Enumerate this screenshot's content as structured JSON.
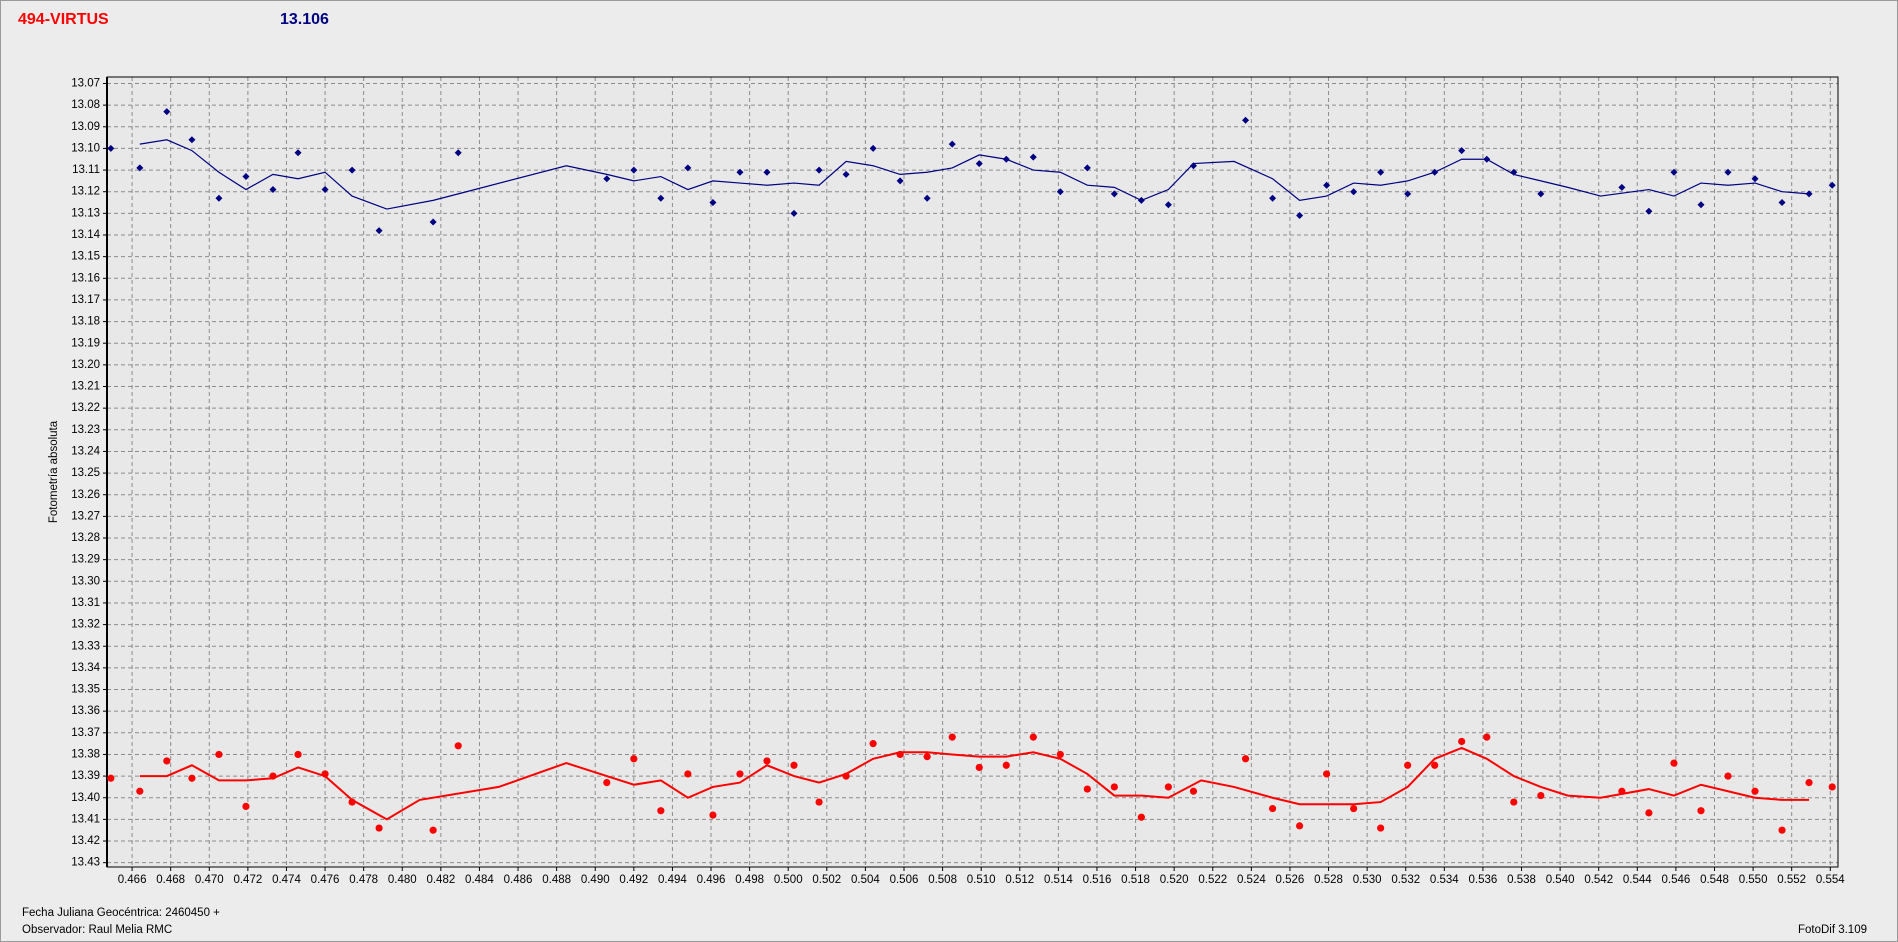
{
  "chart_data": {
    "type": "scatter",
    "title": "494-VIRTUS",
    "subtitle": "13.106",
    "y_label": "Fotometría absoluta",
    "footer_date": "Fecha Juliana Geocéntrica: 2460450 +",
    "footer_observer": "Observador: Raul Melia RMC",
    "software": "FotoDif 3.109",
    "grid": true,
    "invert_y": true,
    "xlim": [
      0.4647,
      0.5544
    ],
    "ylim": [
      13.067,
      13.432
    ],
    "xticks": [
      0.466,
      0.468,
      {
        "value": 0.47,
        "label": "0.470"
      },
      0.472,
      0.474,
      0.476,
      0.478,
      {
        "value": 0.48,
        "label": "0.480"
      },
      0.482,
      0.484,
      0.486,
      0.488,
      {
        "value": 0.49,
        "label": "0.490"
      },
      0.492,
      0.494,
      0.496,
      0.498,
      {
        "value": 0.5,
        "label": "0.500"
      },
      0.502,
      0.504,
      0.506,
      0.508,
      {
        "value": 0.51,
        "label": "0.510"
      },
      0.512,
      0.514,
      0.516,
      0.518,
      {
        "value": 0.52,
        "label": "0.520"
      },
      0.522,
      0.524,
      0.526,
      0.528,
      {
        "value": 0.53,
        "label": "0.530"
      },
      0.532,
      0.534,
      0.536,
      0.538,
      {
        "value": 0.54,
        "label": "0.540"
      },
      0.542,
      0.544,
      0.546,
      0.548,
      {
        "value": 0.55,
        "label": "0.550"
      },
      0.552,
      0.554
    ],
    "yticks": [
      13.07,
      13.08,
      13.09,
      {
        "value": 13.1,
        "label": "13.10"
      },
      13.11,
      13.12,
      13.13,
      13.14,
      13.15,
      13.16,
      13.17,
      13.18,
      13.19,
      {
        "value": 13.2,
        "label": "13.20"
      },
      13.21,
      13.22,
      13.23,
      13.24,
      13.25,
      13.26,
      13.27,
      13.28,
      13.29,
      {
        "value": 13.3,
        "label": "13.30"
      },
      13.31,
      13.32,
      13.33,
      13.34,
      13.35,
      13.36,
      13.37,
      13.38,
      13.39,
      {
        "value": 13.4,
        "label": "13.40"
      },
      13.41,
      13.42,
      13.43
    ],
    "series": [
      {
        "type": "scatter",
        "marker": "diamond",
        "color": "#000080",
        "x": [
          0.4649,
          0.4664,
          0.4678,
          0.4691,
          0.4705,
          0.4719,
          0.4733,
          0.4746,
          0.476,
          0.4774,
          0.4788,
          0.4816,
          0.4829,
          0.4906,
          0.492,
          0.4934,
          0.4948,
          0.4961,
          0.4975,
          0.4989,
          0.5003,
          0.5016,
          0.503,
          0.5044,
          0.5058,
          0.5072,
          0.5085,
          0.5099,
          0.5113,
          0.5127,
          0.5141,
          0.5155,
          0.5169,
          0.5183,
          0.5197,
          0.521,
          0.5237,
          0.5251,
          0.5265,
          0.5279,
          0.5293,
          0.5307,
          0.5321,
          0.5335,
          0.5349,
          0.5362,
          0.5376,
          0.539,
          0.5432,
          0.5446,
          0.5459,
          0.5473,
          0.5487,
          0.5501,
          0.5515,
          0.5529,
          0.5541
        ],
        "values": [
          13.1,
          13.109,
          13.083,
          13.096,
          13.123,
          13.113,
          13.119,
          13.102,
          13.119,
          13.11,
          13.138,
          13.134,
          13.102,
          13.114,
          13.11,
          13.123,
          13.109,
          13.125,
          13.111,
          13.111,
          13.13,
          13.11,
          13.112,
          13.1,
          13.115,
          13.123,
          13.098,
          13.107,
          13.105,
          13.104,
          13.12,
          13.109,
          13.121,
          13.124,
          13.126,
          13.108,
          13.087,
          13.123,
          13.131,
          13.117,
          13.12,
          13.111,
          13.121,
          13.111,
          13.101,
          13.105,
          13.111,
          13.121,
          13.118,
          13.129,
          13.111,
          13.126,
          13.111,
          13.114,
          13.125,
          13.121,
          13.117
        ]
      },
      {
        "type": "line",
        "color": "#000080",
        "x": [
          0.4664,
          0.4678,
          0.4691,
          0.4705,
          0.4719,
          0.4733,
          0.4746,
          0.476,
          0.4774,
          0.4792,
          0.4816,
          0.4829,
          0.4885,
          0.4906,
          0.492,
          0.4934,
          0.4948,
          0.4961,
          0.4975,
          0.4989,
          0.5003,
          0.5016,
          0.503,
          0.5044,
          0.5058,
          0.5072,
          0.5085,
          0.5099,
          0.5113,
          0.5127,
          0.5141,
          0.5155,
          0.5169,
          0.5183,
          0.5197,
          0.521,
          0.5231,
          0.5251,
          0.5265,
          0.5279,
          0.5293,
          0.5307,
          0.5321,
          0.5335,
          0.5349,
          0.5362,
          0.5376,
          0.539,
          0.5404,
          0.5421,
          0.5446,
          0.5459,
          0.5473,
          0.5487,
          0.5501,
          0.5515,
          0.5529
        ],
        "values": [
          13.098,
          13.096,
          13.101,
          13.111,
          13.119,
          13.112,
          13.114,
          13.111,
          13.122,
          13.128,
          13.124,
          13.121,
          13.108,
          13.112,
          13.115,
          13.113,
          13.119,
          13.115,
          13.116,
          13.117,
          13.116,
          13.117,
          13.106,
          13.108,
          13.112,
          13.111,
          13.109,
          13.103,
          13.105,
          13.11,
          13.111,
          13.117,
          13.118,
          13.124,
          13.119,
          13.107,
          13.106,
          13.114,
          13.124,
          13.122,
          13.116,
          13.117,
          13.115,
          13.111,
          13.105,
          13.105,
          13.112,
          13.115,
          13.118,
          13.122,
          13.119,
          13.122,
          13.116,
          13.117,
          13.116,
          13.12,
          13.121
        ]
      },
      {
        "type": "scatter",
        "marker": "circle",
        "color": "#ff0000",
        "x": [
          0.4649,
          0.4664,
          0.4678,
          0.4691,
          0.4705,
          0.4719,
          0.4733,
          0.4746,
          0.476,
          0.4774,
          0.4788,
          0.4816,
          0.4829,
          0.4906,
          0.492,
          0.4934,
          0.4948,
          0.4961,
          0.4975,
          0.4989,
          0.5003,
          0.5016,
          0.503,
          0.5044,
          0.5058,
          0.5072,
          0.5085,
          0.5099,
          0.5113,
          0.5127,
          0.5141,
          0.5155,
          0.5169,
          0.5183,
          0.5197,
          0.521,
          0.5237,
          0.5251,
          0.5265,
          0.5279,
          0.5293,
          0.5307,
          0.5321,
          0.5335,
          0.5349,
          0.5362,
          0.5376,
          0.539,
          0.5432,
          0.5446,
          0.5459,
          0.5473,
          0.5487,
          0.5501,
          0.5515,
          0.5529,
          0.5541
        ],
        "values": [
          13.391,
          13.397,
          13.383,
          13.391,
          13.38,
          13.404,
          13.39,
          13.38,
          13.389,
          13.402,
          13.414,
          13.415,
          13.376,
          13.393,
          13.382,
          13.406,
          13.389,
          13.408,
          13.389,
          13.383,
          13.385,
          13.402,
          13.39,
          13.375,
          13.38,
          13.381,
          13.372,
          13.386,
          13.385,
          13.372,
          13.38,
          13.396,
          13.395,
          13.409,
          13.395,
          13.397,
          13.382,
          13.405,
          13.413,
          13.389,
          13.405,
          13.414,
          13.385,
          13.385,
          13.374,
          13.372,
          13.402,
          13.399,
          13.397,
          13.407,
          13.384,
          13.406,
          13.39,
          13.397,
          13.415,
          13.393,
          13.395
        ]
      },
      {
        "type": "line",
        "color": "#ff0000",
        "x": [
          0.4664,
          0.4678,
          0.4691,
          0.4705,
          0.4719,
          0.4733,
          0.4746,
          0.476,
          0.4774,
          0.4792,
          0.4809,
          0.485,
          0.4885,
          0.4906,
          0.492,
          0.4934,
          0.4948,
          0.4961,
          0.4975,
          0.4989,
          0.5003,
          0.5016,
          0.503,
          0.5044,
          0.5058,
          0.5072,
          0.5085,
          0.5099,
          0.5113,
          0.5127,
          0.5141,
          0.5155,
          0.5169,
          0.5183,
          0.5197,
          0.5214,
          0.5231,
          0.5251,
          0.5265,
          0.5279,
          0.5293,
          0.5307,
          0.5321,
          0.5335,
          0.5349,
          0.5362,
          0.5376,
          0.539,
          0.5404,
          0.5421,
          0.5446,
          0.5459,
          0.5473,
          0.5487,
          0.5501,
          0.5515,
          0.5529
        ],
        "values": [
          13.39,
          13.39,
          13.385,
          13.392,
          13.392,
          13.391,
          13.386,
          13.39,
          13.401,
          13.41,
          13.401,
          13.395,
          13.384,
          13.39,
          13.394,
          13.392,
          13.4,
          13.395,
          13.393,
          13.385,
          13.39,
          13.393,
          13.389,
          13.382,
          13.379,
          13.379,
          13.38,
          13.381,
          13.381,
          13.379,
          13.382,
          13.389,
          13.399,
          13.399,
          13.4,
          13.392,
          13.395,
          13.4,
          13.403,
          13.403,
          13.403,
          13.402,
          13.395,
          13.382,
          13.377,
          13.382,
          13.39,
          13.395,
          13.399,
          13.4,
          13.396,
          13.399,
          13.394,
          13.397,
          13.4,
          13.401,
          13.401
        ]
      }
    ]
  }
}
